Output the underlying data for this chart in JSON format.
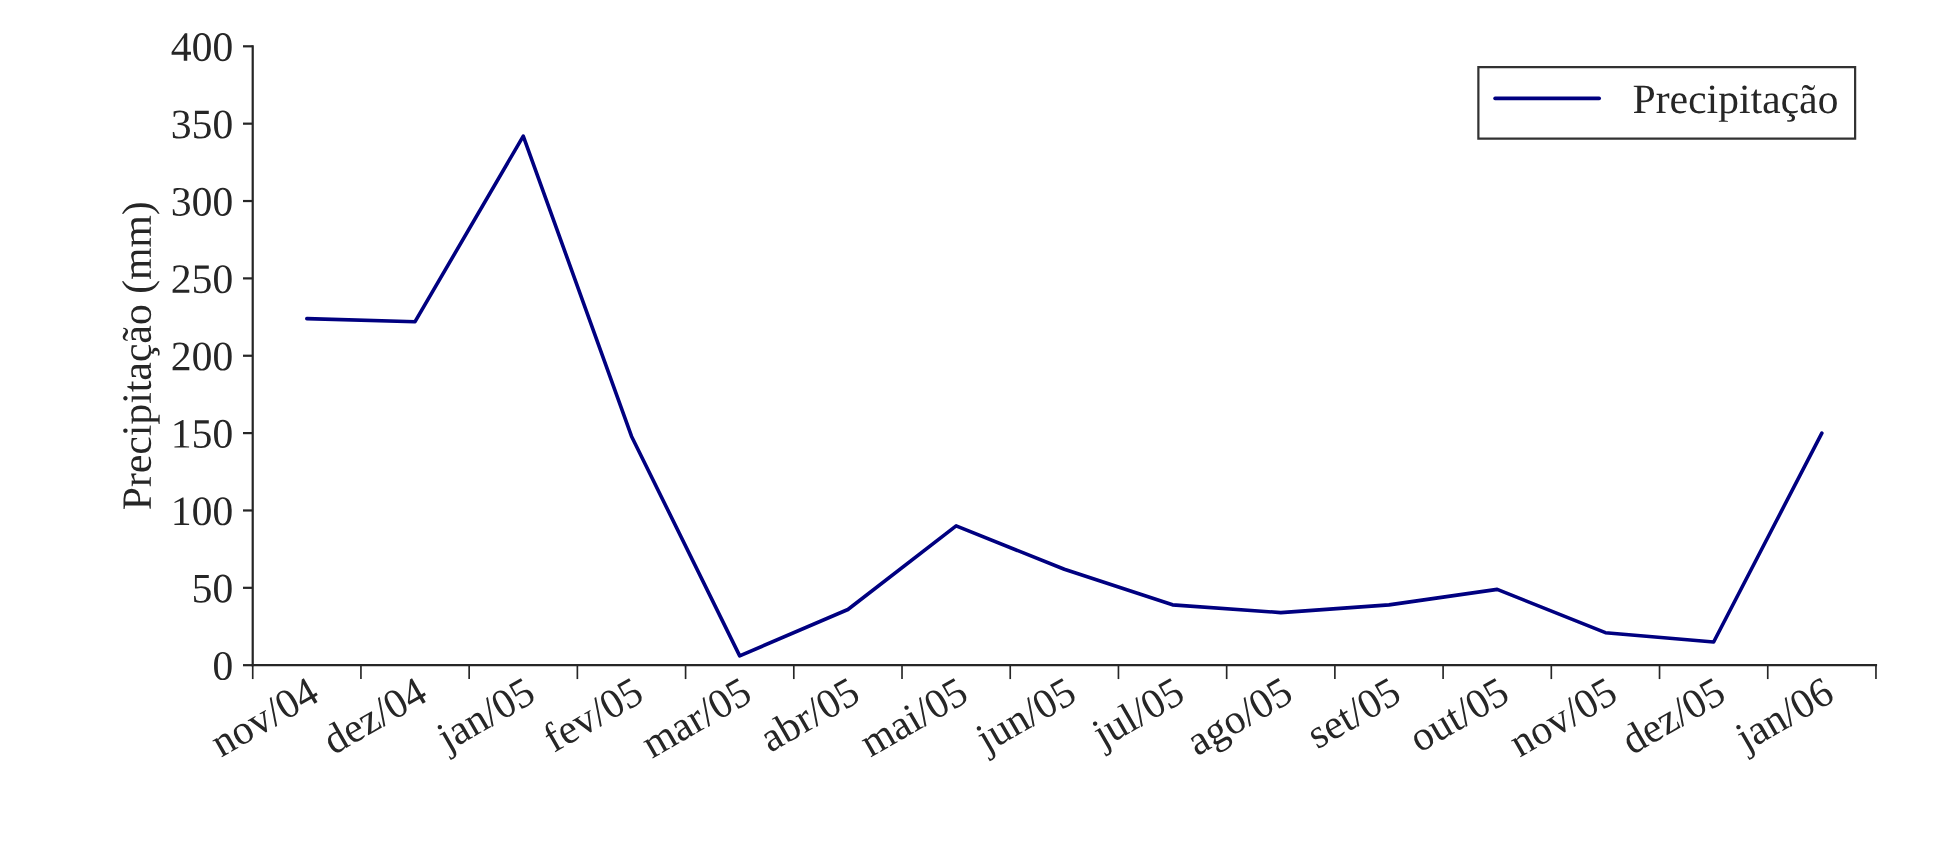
{
  "chart_data": {
    "type": "line",
    "ylabel": "Precipitação (mm)",
    "categories": [
      "nov/04",
      "dez/04",
      "jan/05",
      "fev/05",
      "mar/05",
      "abr/05",
      "mai/05",
      "jun/05",
      "jul/05",
      "ago/05",
      "set/05",
      "out/05",
      "nov/05",
      "dez/05",
      "jan/06"
    ],
    "series": [
      {
        "name": "Precipitação",
        "color": "#000080",
        "values": [
          224,
          222,
          342,
          148,
          6,
          36,
          90,
          62,
          39,
          34,
          39,
          49,
          21,
          15,
          150
        ]
      }
    ],
    "ylim": [
      0,
      400
    ],
    "yticks": [
      0,
      50,
      100,
      150,
      200,
      250,
      300,
      350,
      400
    ],
    "grid": false,
    "legend": "top right",
    "marker": "none",
    "line_style": "solid"
  }
}
